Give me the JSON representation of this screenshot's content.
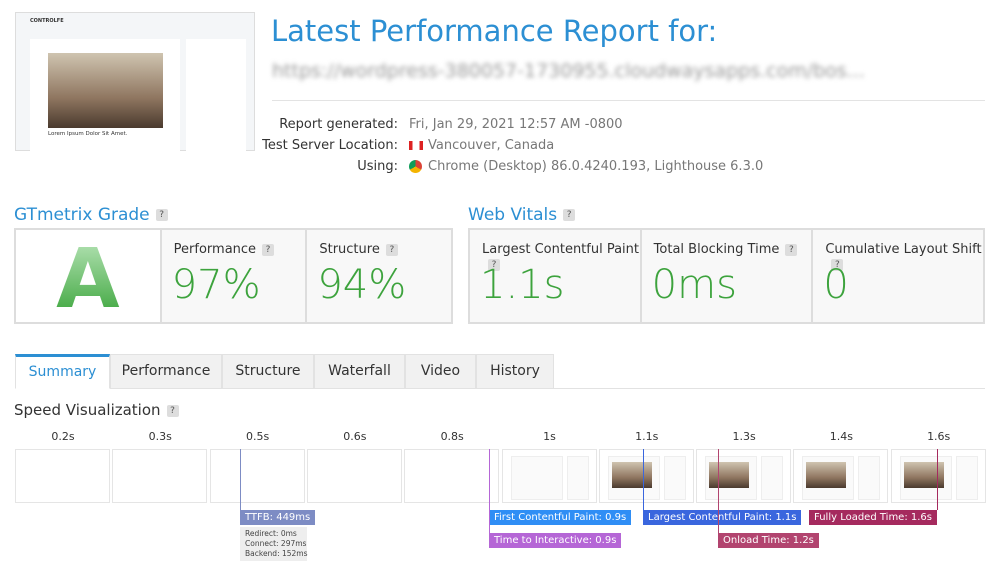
{
  "thumbnail": {
    "brand": "CONTROLFE",
    "caption": "Lorem Ipsum Dolor Sit Amet."
  },
  "header": {
    "title": "Latest Performance Report for:",
    "url": "https://wordpress-380057-1730955.cloudwaysapps.com/bos..."
  },
  "meta": [
    {
      "label": "Report generated:",
      "value": "Fri, Jan 29, 2021 12:57 AM -0800"
    },
    {
      "label": "Test Server Location:",
      "value": "Vancouver, Canada"
    },
    {
      "label": "Using:",
      "value": "Chrome (Desktop) 86.0.4240.193, Lighthouse 6.3.0"
    }
  ],
  "help": "?",
  "grade": {
    "heading": "GTmetrix Grade",
    "letter": "A",
    "metrics": [
      {
        "label": "Performance",
        "value": "97%"
      },
      {
        "label": "Structure",
        "value": "94%"
      }
    ]
  },
  "web_vitals": {
    "heading": "Web Vitals",
    "metrics": [
      {
        "label": "Largest Contentful Paint",
        "value": "1.1s"
      },
      {
        "label": "Total Blocking Time",
        "value": "0ms"
      },
      {
        "label": "Cumulative Layout Shift",
        "value": "0"
      }
    ]
  },
  "tabs": [
    "Summary",
    "Performance",
    "Structure",
    "Waterfall",
    "Video",
    "History"
  ],
  "speed_visualization": {
    "heading": "Speed Visualization",
    "frames": [
      "0.2s",
      "0.3s",
      "0.5s",
      "0.6s",
      "0.8s",
      "1s",
      "1.1s",
      "1.3s",
      "1.4s",
      "1.6s"
    ],
    "markers": [
      {
        "label": "TTFB: 449ms",
        "details": [
          "Redirect: 0ms",
          "Connect: 297ms",
          "Backend: 152ms"
        ]
      },
      {
        "label": "First Contentful Paint: 0.9s"
      },
      {
        "label": "Time to Interactive: 0.9s"
      },
      {
        "label": "Largest Contentful Paint: 1.1s"
      },
      {
        "label": "Onload Time: 1.2s"
      },
      {
        "label": "Fully Loaded Time: 1.6s"
      }
    ]
  }
}
